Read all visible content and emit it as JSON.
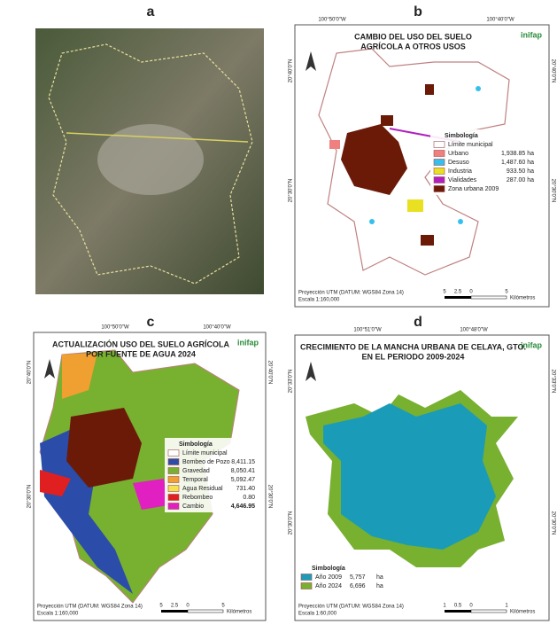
{
  "panels": [
    {
      "label": "a"
    },
    {
      "label": "b",
      "title_lines": [
        "CAMBIO DEL USO DEL SUELO",
        "AGRÍCOLA A OTROS USOS"
      ],
      "logo": "inifap",
      "lon_labels": [
        "100°50'0\"W",
        "100°40'0\"W"
      ],
      "lat_labels": [
        "20°40'0\"N",
        "20°30'0\"N"
      ],
      "legend": {
        "title": "Simbología",
        "items": [
          {
            "label": "Límite municipal",
            "color": "#ffffff"
          },
          {
            "label": "Urbano",
            "value": "1,938.85 ha",
            "color": "#f08080"
          },
          {
            "label": "Desuso",
            "value": "1,487.60 ha",
            "color": "#33c0ee"
          },
          {
            "label": "Industria",
            "value": "933.50 ha",
            "color": "#e8e020"
          },
          {
            "label": "Vialidades",
            "value": "287.00 ha",
            "color": "#b020c0"
          },
          {
            "label": "Zona urbana 2009",
            "color": "#6b1a08"
          }
        ]
      },
      "projection": "Proyección UTM (DATUM: WGS84 Zona 14)",
      "scale": "Escala 1:160,000",
      "scalebar": [
        "5",
        "2.5",
        "0",
        "5"
      ],
      "scalebar_unit": "Kilómetros"
    },
    {
      "label": "c",
      "title_lines": [
        "ACTUALIZACIÓN USO DEL SUELO AGRÍCOLA",
        "POR FUENTE DE AGUA 2024"
      ],
      "logo": "inifap",
      "lon_labels": [
        "100°50'0\"W",
        "100°40'0\"W"
      ],
      "lat_labels": [
        "20°40'0\"N",
        "20°30'0\"N"
      ],
      "legend": {
        "title": "Simbología",
        "items": [
          {
            "label": "Límite municipal",
            "color": "#ffffff"
          },
          {
            "label": "Bombeo de Pozo",
            "value": "8,411.15",
            "color": "#2b4ca8"
          },
          {
            "label": "Gravedad",
            "value": "8,050.41",
            "color": "#78b030"
          },
          {
            "label": "Temporal",
            "value": "5,092.47",
            "color": "#f0a030"
          },
          {
            "label": "Agua Residual",
            "value": "731.40",
            "color": "#f5e050"
          },
          {
            "label": "Rebombeo",
            "value": "0.80",
            "color": "#e02020"
          },
          {
            "label": "Cambio",
            "value": "4,646.95",
            "color": "#e020c0"
          }
        ]
      },
      "projection": "Proyección UTM (DATUM: WGS84 Zona 14)",
      "scale": "Escala 1:160,000",
      "scalebar": [
        "5",
        "2.5",
        "0",
        "5"
      ],
      "scalebar_unit": "Kilómetros"
    },
    {
      "label": "d",
      "title_lines": [
        "CRECIMIENTO DE LA MANCHA URBANA DE CELAYA, GTO.",
        "EN EL PERIODO 2009-2024"
      ],
      "logo": "inifap",
      "lon_labels": [
        "100°51'0\"W",
        "100°48'0\"W"
      ],
      "lat_labels": [
        "20°33'0\"N",
        "20°30'0\"N"
      ],
      "legend": {
        "title": "Simbología",
        "items": [
          {
            "label": "Año 2009",
            "value": "5,757",
            "unit": "ha",
            "color": "#1a9cb8"
          },
          {
            "label": "Año 2024",
            "value": "6,696",
            "unit": "ha",
            "color": "#78b030"
          }
        ]
      },
      "projection": "Proyección UTM (DATUM: WGS84 Zona 14)",
      "scale": "Escala 1:60,000",
      "scalebar": [
        "1",
        "0.5",
        "0",
        "1"
      ],
      "scalebar_unit": "Kilómetros"
    }
  ]
}
